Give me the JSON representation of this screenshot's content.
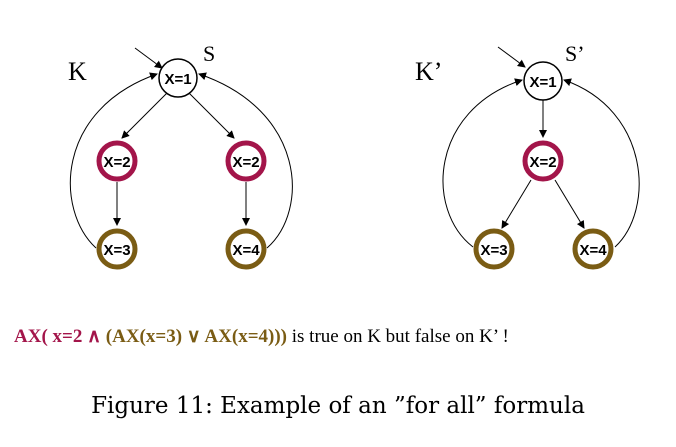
{
  "colors": {
    "red_ring": "#a3154a",
    "olive_ring": "#7a5c14",
    "black": "#000000"
  },
  "diagram_left": {
    "label": "K",
    "start_label": "S",
    "nodes": {
      "root": "X=1",
      "left_mid": "X=2",
      "right_mid": "X=2",
      "left_leaf": "X=3",
      "right_leaf": "X=4"
    }
  },
  "diagram_right": {
    "label": "K’",
    "start_label": "S’",
    "nodes": {
      "root": "X=1",
      "mid": "X=2",
      "left_leaf": "X=3",
      "right_leaf": "X=4"
    }
  },
  "formula": {
    "p1": "AX( x=2 ",
    "op_and": "∧",
    "p2": " (AX(x=3) ",
    "op_or": "∨",
    "p3": " AX(x=4)))",
    "p4": " is true on K but false on K’ !"
  },
  "caption": "Figure 11: Example of an ”for all” formula"
}
